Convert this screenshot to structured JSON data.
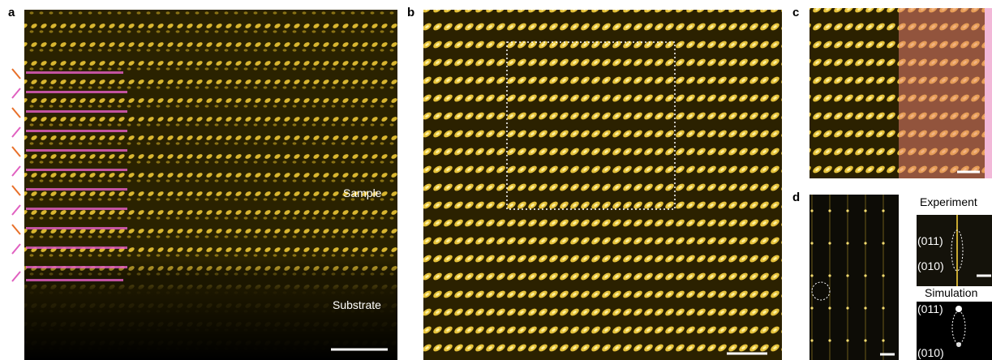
{
  "panels": [
    {
      "label": "a",
      "annotations": [
        "Sample",
        "Substrate"
      ]
    },
    {
      "label": "b"
    },
    {
      "label": "c"
    },
    {
      "label": "d",
      "insets": [
        {
          "title": "Experiment",
          "labels": [
            "(011)",
            "(010)"
          ]
        },
        {
          "title": "Simulation",
          "labels": [
            "(011)",
            "(010)"
          ]
        }
      ]
    }
  ]
}
